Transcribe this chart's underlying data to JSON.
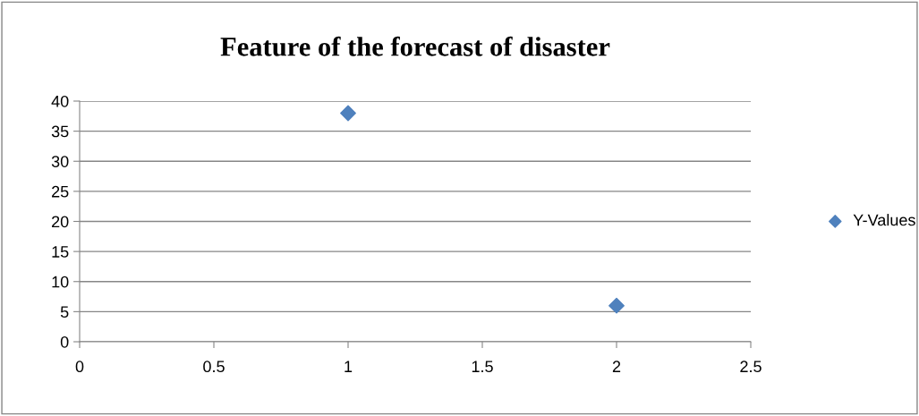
{
  "chart_data": {
    "type": "scatter",
    "title": "Feature of the forecast of disaster",
    "x": [
      1,
      2
    ],
    "series": [
      {
        "name": "Y-Values",
        "color": "#4f81bd",
        "values": [
          38,
          6
        ]
      }
    ],
    "xlim": [
      0,
      2.5
    ],
    "xticks": [
      0,
      0.5,
      1,
      1.5,
      2,
      2.5
    ],
    "ylim": [
      0,
      40
    ],
    "yticks": [
      0,
      5,
      10,
      15,
      20,
      25,
      30,
      35,
      40
    ],
    "grid": "y",
    "legend": "right",
    "marker": "diamond"
  }
}
